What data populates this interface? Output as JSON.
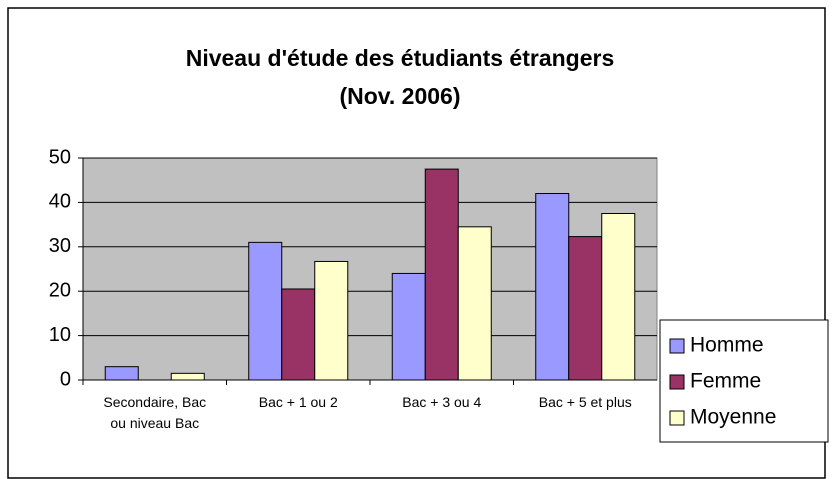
{
  "chart_data": {
    "type": "bar",
    "title": "Niveau d'étude des étudiants étrangers",
    "subtitle": "(Nov. 2006)",
    "categories": [
      "Secondaire, Bac ou niveau Bac",
      "Bac + 1 ou 2",
      "Bac + 3 ou 4",
      "Bac + 5 et plus"
    ],
    "series": [
      {
        "name": "Homme",
        "color": "#9999ff",
        "values": [
          3,
          31,
          24,
          42
        ]
      },
      {
        "name": "Femme",
        "color": "#993366",
        "values": [
          0,
          20.5,
          47.5,
          32.3
        ]
      },
      {
        "name": "Moyenne",
        "color": "#ffffcc",
        "values": [
          1.5,
          26.7,
          34.5,
          37.5
        ]
      }
    ],
    "ylim": [
      0,
      50
    ],
    "yticks": [
      0,
      10,
      20,
      30,
      40,
      50
    ],
    "grid": true,
    "legend": "right"
  }
}
